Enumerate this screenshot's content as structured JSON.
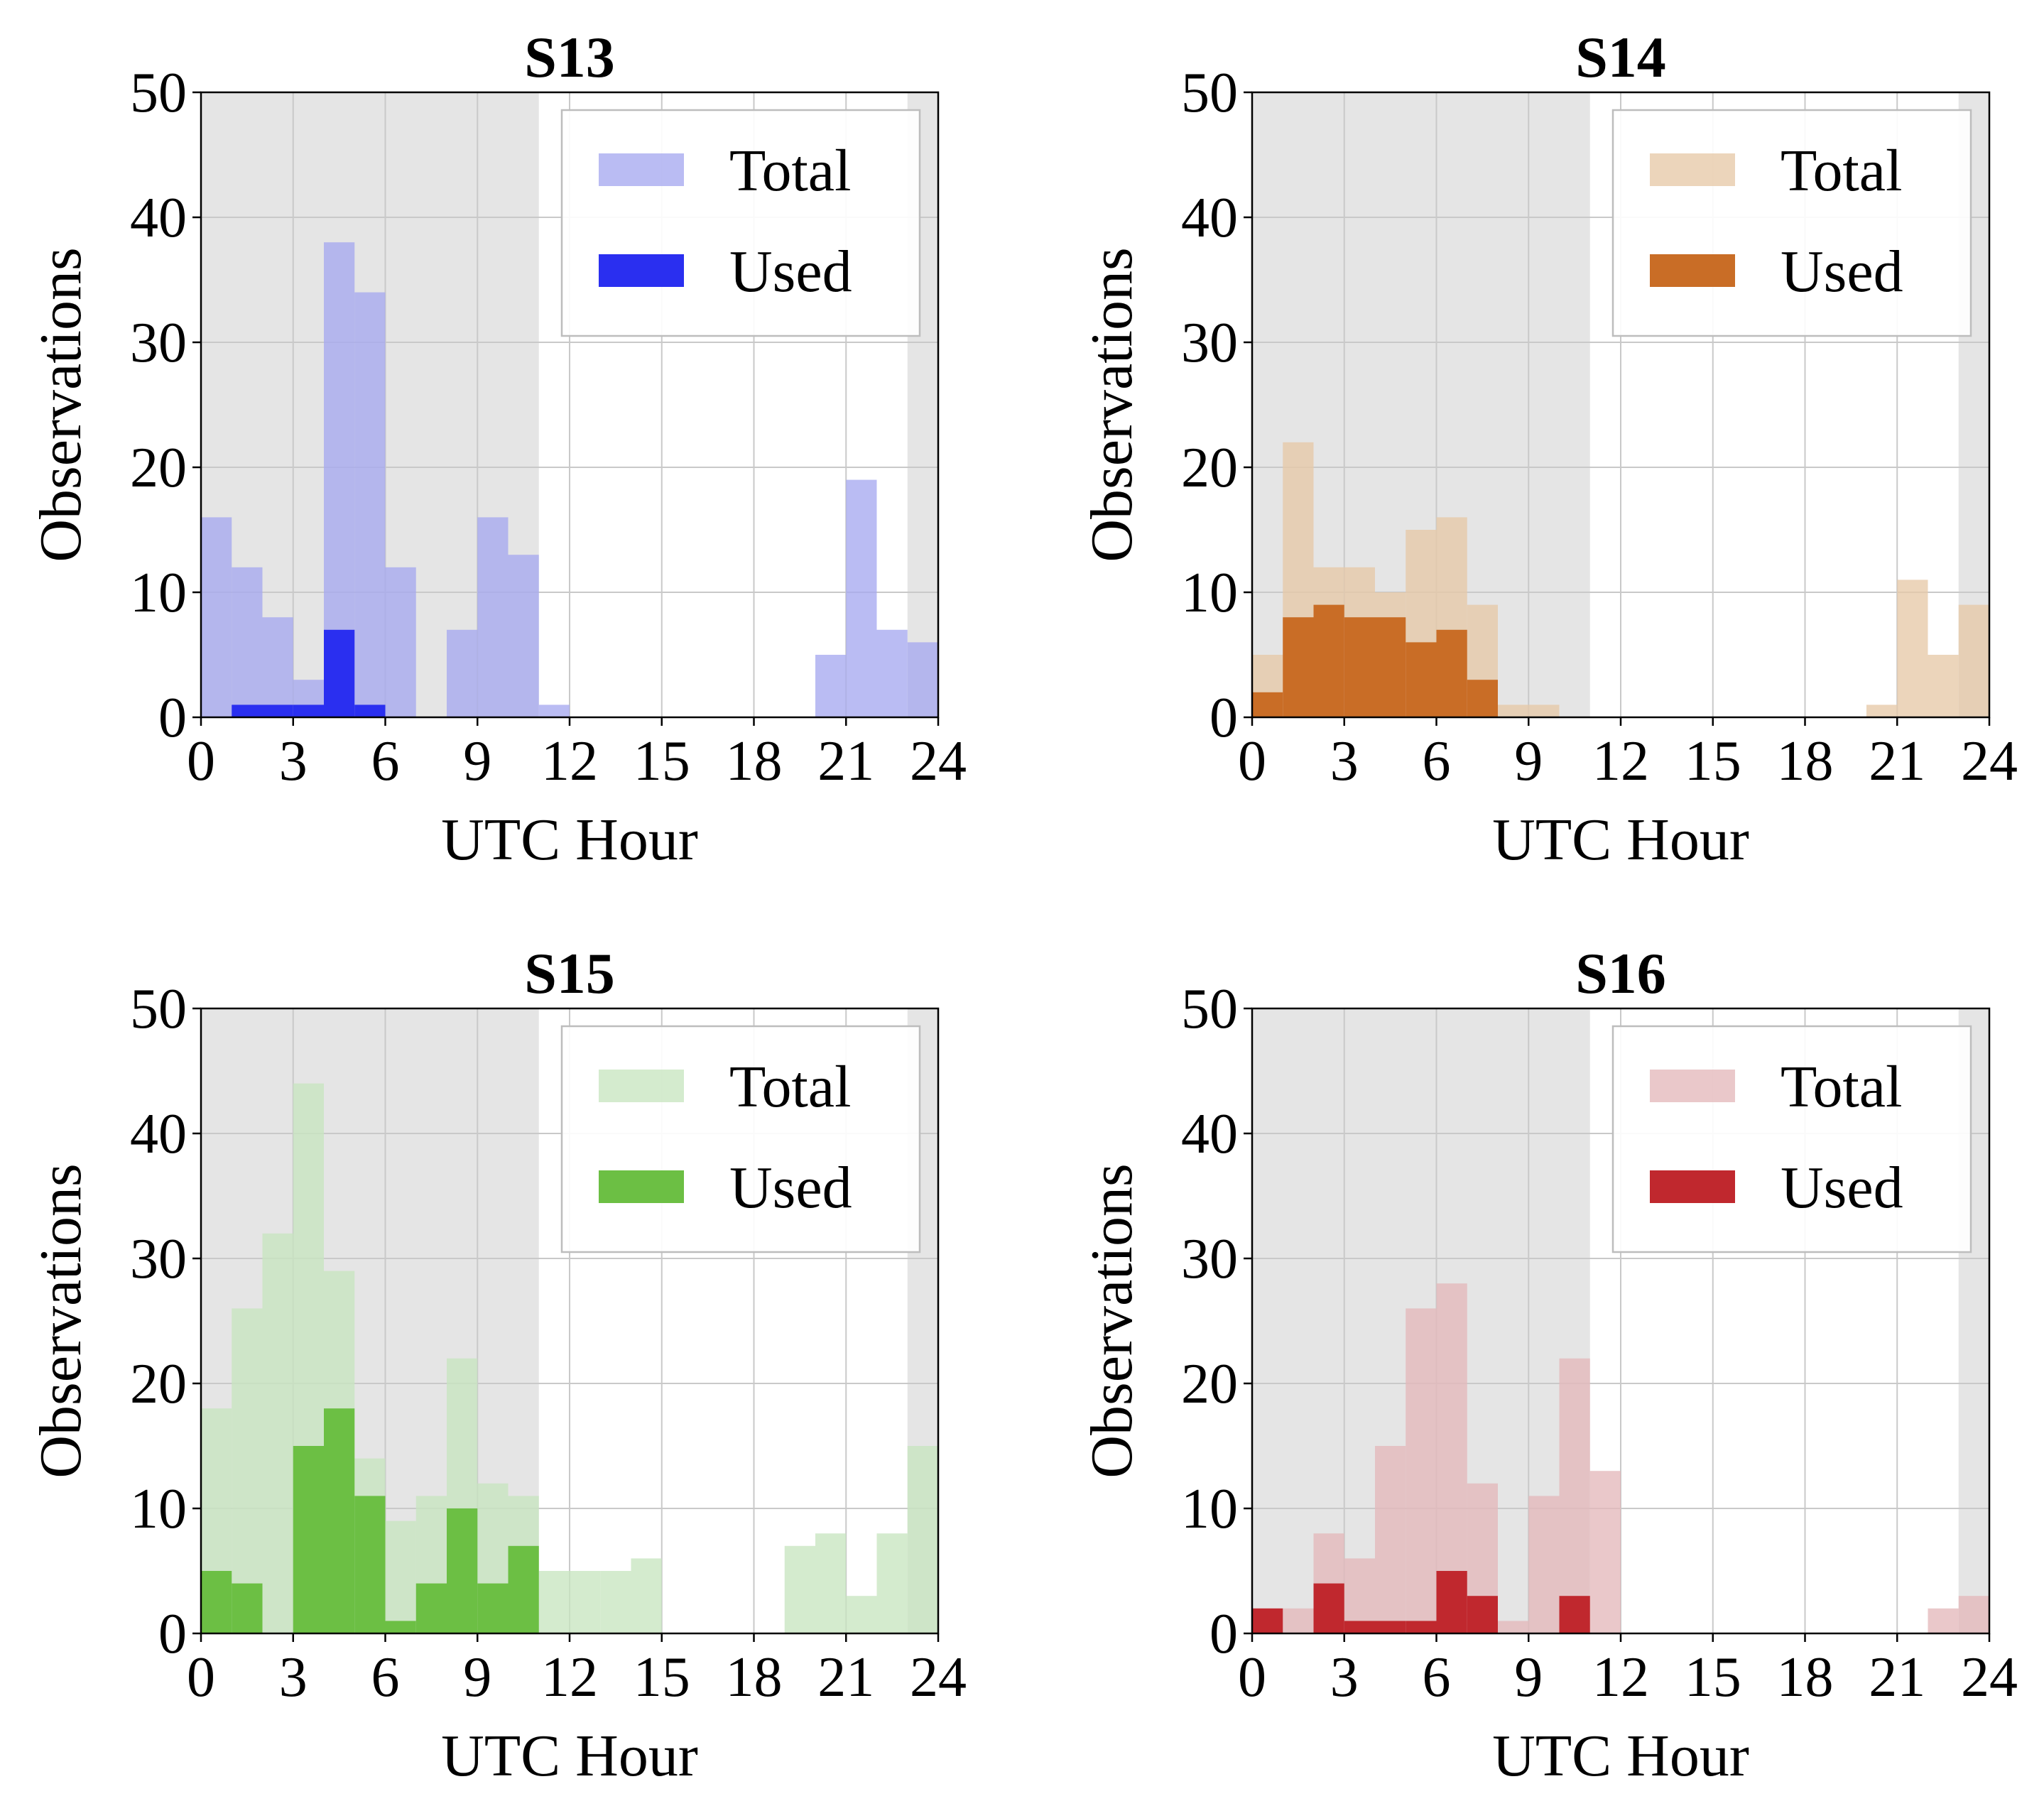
{
  "figure": {
    "title": ""
  },
  "chart_data": [
    {
      "type": "bar",
      "title": "S13",
      "xlabel": "UTC Hour",
      "ylabel": "Observations",
      "xlim": [
        0,
        24
      ],
      "ylim": [
        0,
        50
      ],
      "xticks": [
        "0",
        "3",
        "6",
        "9",
        "12",
        "15",
        "18",
        "21",
        "24"
      ],
      "yticks": [
        "0",
        "10",
        "20",
        "30",
        "40",
        "50"
      ],
      "bin_width_hours": 1,
      "night_shading": [
        [
          0,
          11
        ],
        [
          23,
          24
        ]
      ],
      "grid": true,
      "legend": {
        "position": "top-right",
        "entries": [
          "Total",
          "Used"
        ]
      },
      "colors": {
        "total": "#a7a9ef",
        "used": "#2a2ff0",
        "night": "#e5e5e5"
      },
      "series": [
        {
          "name": "Total",
          "values": [
            16,
            12,
            8,
            3,
            38,
            34,
            12,
            0,
            7,
            16,
            13,
            1,
            0,
            0,
            0,
            0,
            0,
            0,
            0,
            0,
            5,
            19,
            7,
            6
          ]
        },
        {
          "name": "Used",
          "values": [
            0,
            1,
            1,
            1,
            7,
            1,
            0,
            0,
            0,
            0,
            0,
            0,
            0,
            0,
            0,
            0,
            0,
            0,
            0,
            0,
            0,
            0,
            0,
            0
          ]
        }
      ]
    },
    {
      "type": "bar",
      "title": "S14",
      "xlabel": "UTC Hour",
      "ylabel": "Observations",
      "xlim": [
        0,
        24
      ],
      "ylim": [
        0,
        50
      ],
      "xticks": [
        "0",
        "3",
        "6",
        "9",
        "12",
        "15",
        "18",
        "21",
        "24"
      ],
      "yticks": [
        "0",
        "10",
        "20",
        "30",
        "40",
        "50"
      ],
      "bin_width_hours": 1,
      "night_shading": [
        [
          0,
          11
        ],
        [
          23,
          24
        ]
      ],
      "grid": true,
      "legend": {
        "position": "top-right",
        "entries": [
          "Total",
          "Used"
        ]
      },
      "colors": {
        "total": "#e7c9a8",
        "used": "#c96d26",
        "night": "#e5e5e5"
      },
      "series": [
        {
          "name": "Total",
          "values": [
            5,
            22,
            12,
            12,
            10,
            15,
            16,
            9,
            1,
            1,
            0,
            0,
            0,
            0,
            0,
            0,
            0,
            0,
            0,
            0,
            1,
            11,
            5,
            9
          ]
        },
        {
          "name": "Used",
          "values": [
            2,
            8,
            9,
            8,
            8,
            6,
            7,
            3,
            0,
            0,
            0,
            0,
            0,
            0,
            0,
            0,
            0,
            0,
            0,
            0,
            0,
            0,
            0,
            0
          ]
        }
      ]
    },
    {
      "type": "bar",
      "title": "S15",
      "xlabel": "UTC Hour",
      "ylabel": "Observations",
      "xlim": [
        0,
        24
      ],
      "ylim": [
        0,
        50
      ],
      "xticks": [
        "0",
        "3",
        "6",
        "9",
        "12",
        "15",
        "18",
        "21",
        "24"
      ],
      "yticks": [
        "0",
        "10",
        "20",
        "30",
        "40",
        "50"
      ],
      "bin_width_hours": 1,
      "night_shading": [
        [
          0,
          11
        ],
        [
          23,
          24
        ]
      ],
      "grid": true,
      "legend": {
        "position": "top-right",
        "entries": [
          "Total",
          "Used"
        ]
      },
      "colors": {
        "total": "#c8e6c0",
        "used": "#6cbf44",
        "night": "#e5e5e5"
      },
      "series": [
        {
          "name": "Total",
          "values": [
            18,
            26,
            32,
            44,
            29,
            14,
            9,
            11,
            22,
            12,
            11,
            5,
            5,
            5,
            6,
            0,
            0,
            0,
            0,
            7,
            8,
            3,
            8,
            15
          ]
        },
        {
          "name": "Used",
          "values": [
            5,
            4,
            0,
            15,
            18,
            11,
            1,
            4,
            10,
            4,
            7,
            0,
            0,
            0,
            0,
            0,
            0,
            0,
            0,
            0,
            0,
            0,
            0,
            0
          ]
        }
      ]
    },
    {
      "type": "bar",
      "title": "S16",
      "xlabel": "UTC Hour",
      "ylabel": "Observations",
      "xlim": [
        0,
        24
      ],
      "ylim": [
        0,
        50
      ],
      "xticks": [
        "0",
        "3",
        "6",
        "9",
        "12",
        "15",
        "18",
        "21",
        "24"
      ],
      "yticks": [
        "0",
        "10",
        "20",
        "30",
        "40",
        "50"
      ],
      "bin_width_hours": 1,
      "night_shading": [
        [
          0,
          11
        ],
        [
          23,
          24
        ]
      ],
      "grid": true,
      "legend": {
        "position": "top-right",
        "entries": [
          "Total",
          "Used"
        ]
      },
      "colors": {
        "total": "#e4b8bb",
        "used": "#c0282e",
        "night": "#e5e5e5"
      },
      "series": [
        {
          "name": "Total",
          "values": [
            2,
            2,
            8,
            6,
            15,
            26,
            28,
            12,
            1,
            11,
            22,
            13,
            0,
            0,
            0,
            0,
            0,
            0,
            0,
            0,
            0,
            0,
            2,
            3
          ]
        },
        {
          "name": "Used",
          "values": [
            2,
            0,
            4,
            1,
            1,
            1,
            5,
            3,
            0,
            0,
            3,
            0,
            0,
            0,
            0,
            0,
            0,
            0,
            0,
            0,
            0,
            0,
            0,
            0
          ]
        }
      ]
    }
  ]
}
